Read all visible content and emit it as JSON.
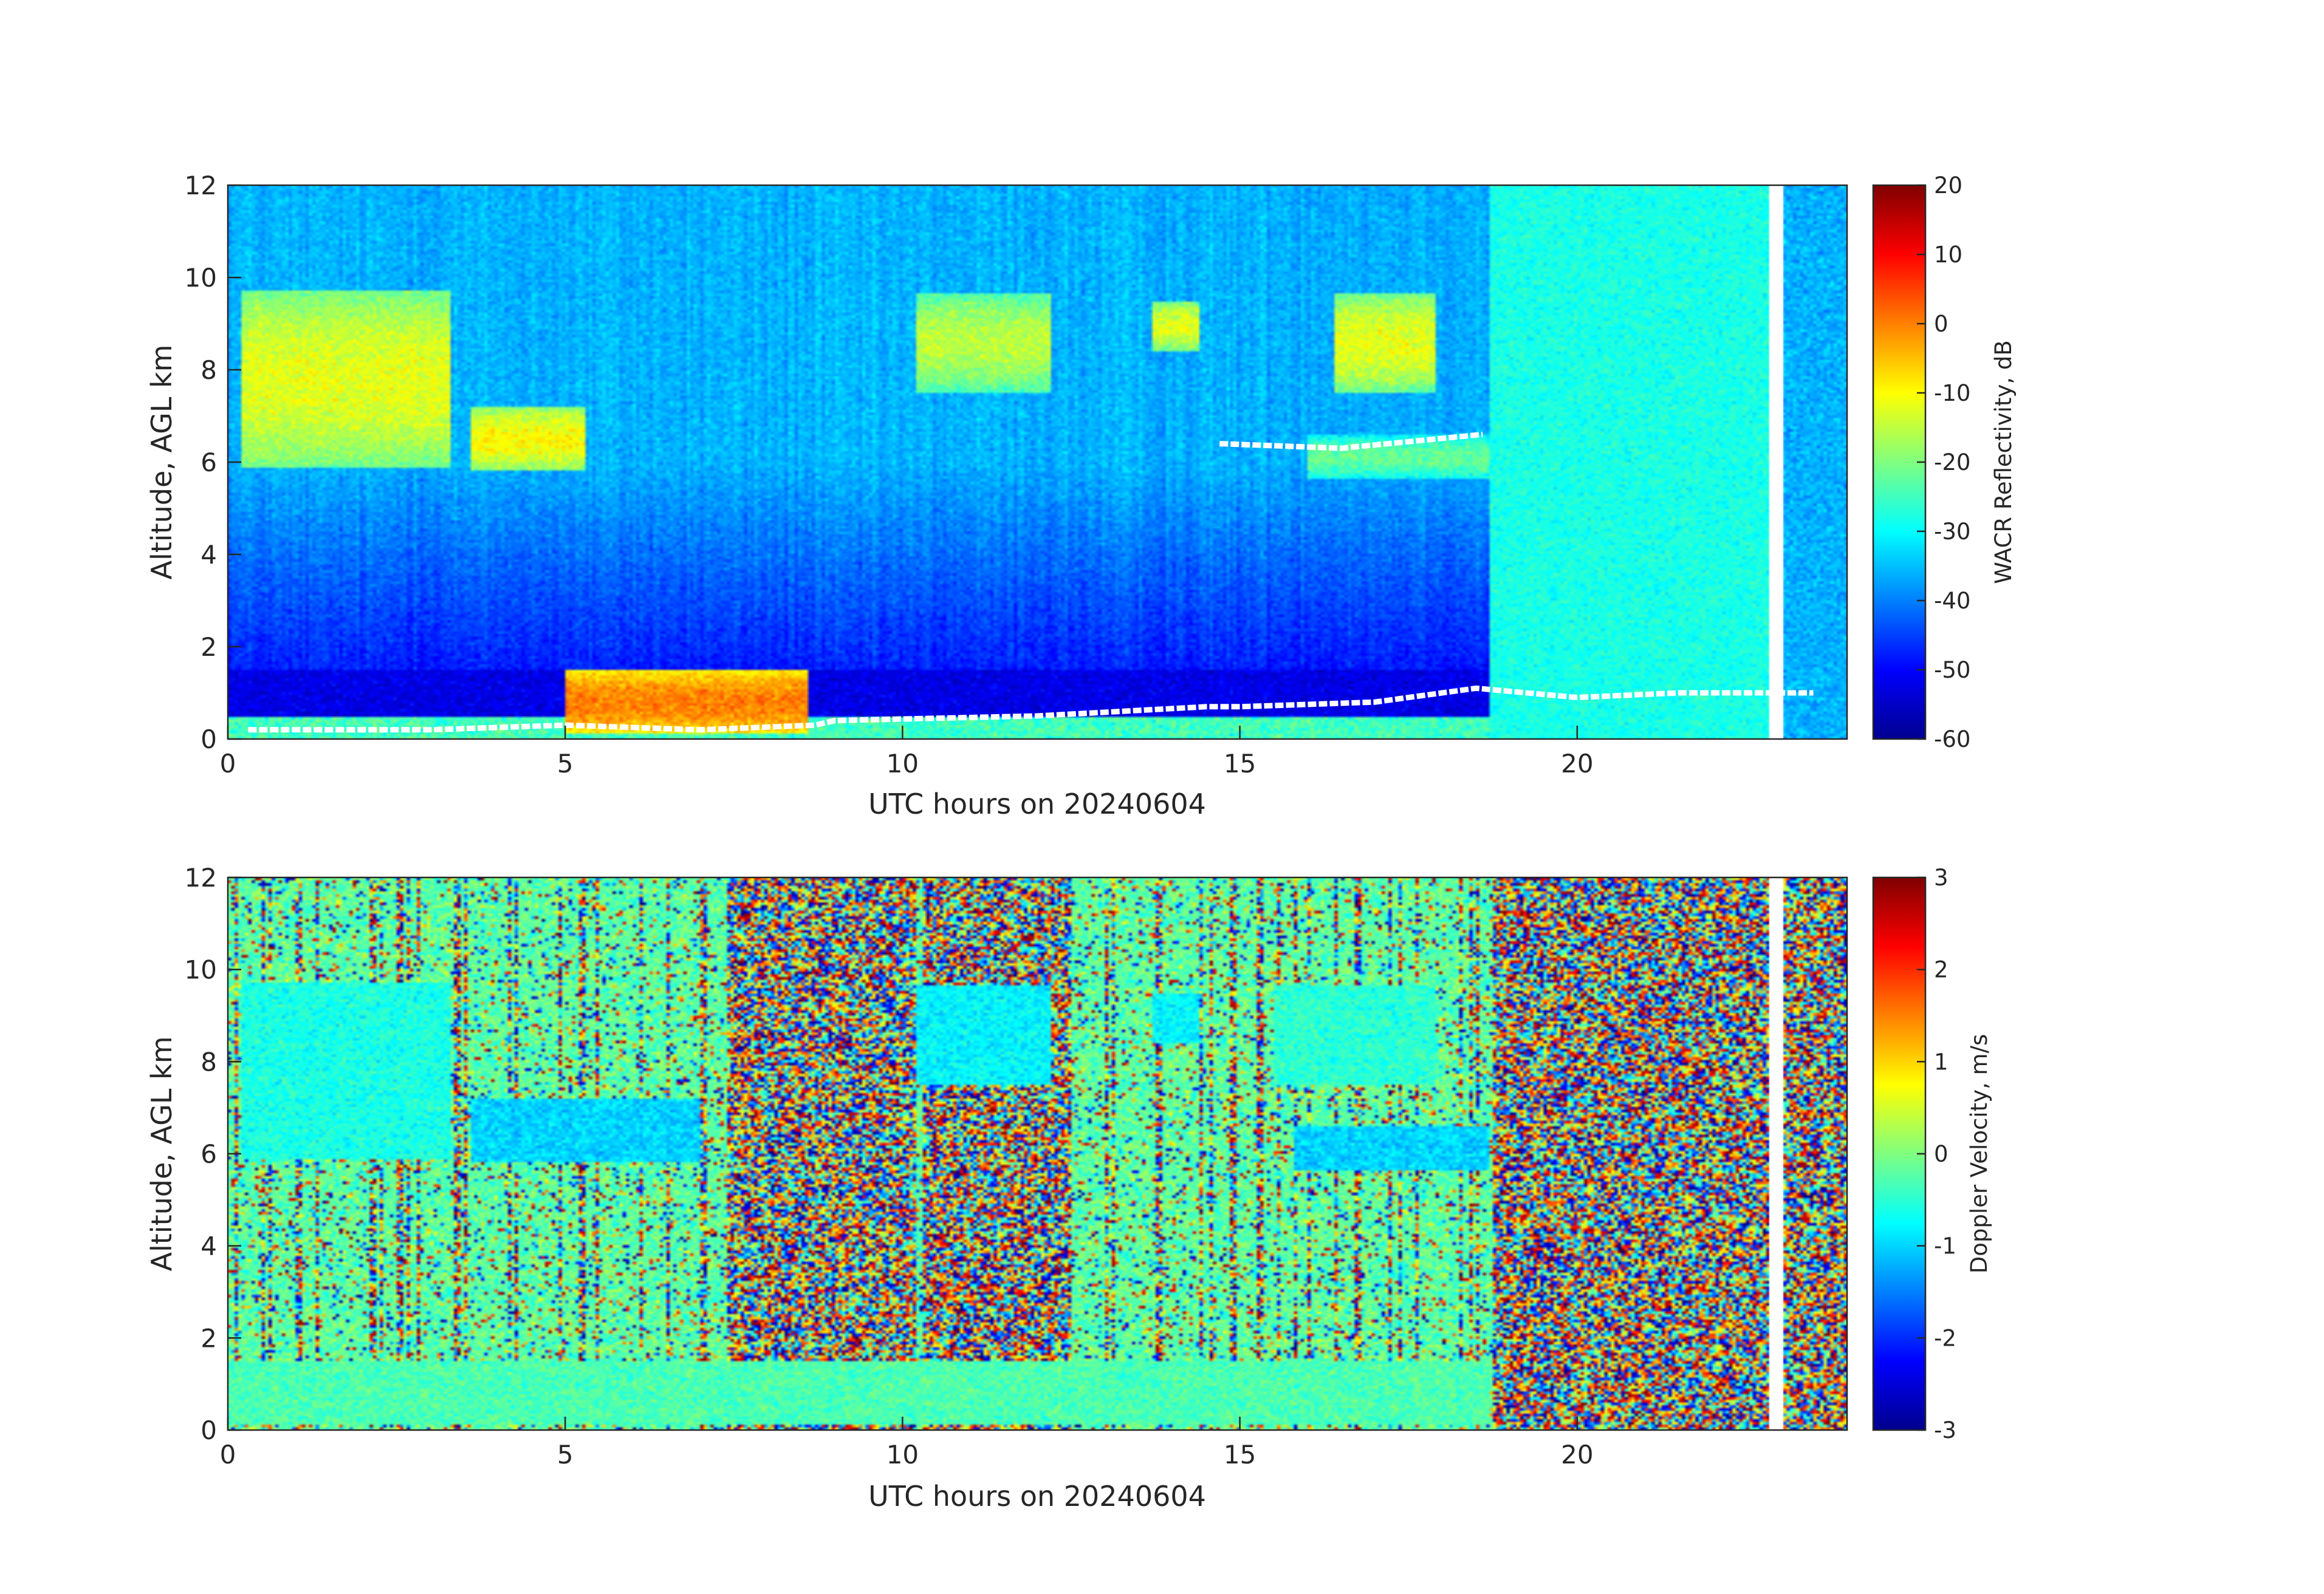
{
  "chart_data": [
    {
      "type": "heatmap",
      "xlabel": "UTC hours on 20240604",
      "ylabel": "Altitude, AGL km",
      "xlim": [
        0,
        24
      ],
      "ylim": [
        0,
        12
      ],
      "x_ticks": [
        0,
        5,
        10,
        15,
        20
      ],
      "y_ticks": [
        0,
        2,
        4,
        6,
        8,
        10,
        12
      ],
      "colorbar": {
        "label": "WACR Reflectivity, dB",
        "range": [
          -60,
          20
        ],
        "ticks": [
          -60,
          -50,
          -40,
          -30,
          -20,
          -10,
          0,
          10,
          20
        ],
        "colormap": "jet"
      },
      "data_gap_hours": [
        22.85,
        23.05
      ],
      "features": [
        {
          "kind": "cirrus",
          "x_start": 0.2,
          "x_end": 3.3,
          "y_bottom": 5.8,
          "y_top": 9.8,
          "dbz": -12
        },
        {
          "kind": "cirrus",
          "x_start": 3.6,
          "x_end": 5.3,
          "y_bottom": 5.8,
          "y_top": 7.2,
          "dbz": -10
        },
        {
          "kind": "cirrus",
          "x_start": 10.2,
          "x_end": 12.2,
          "y_bottom": 7.5,
          "y_top": 9.7,
          "dbz": -15
        },
        {
          "kind": "cirrus",
          "x_start": 13.7,
          "x_end": 14.4,
          "y_bottom": 8.4,
          "y_top": 9.5,
          "dbz": -12
        },
        {
          "kind": "cirrus",
          "x_start": 16.4,
          "x_end": 17.9,
          "y_bottom": 7.5,
          "y_top": 9.7,
          "dbz": -12
        },
        {
          "kind": "mid-layer",
          "x_start": 16.0,
          "x_end": 18.7,
          "y_bottom": 5.6,
          "y_top": 6.6,
          "dbz": -22
        },
        {
          "kind": "boundary-layer",
          "x_start": 5.0,
          "x_end": 8.6,
          "y_bottom": 0.1,
          "y_top": 1.5,
          "dbz": 0
        }
      ],
      "cloud_base_line_km": [
        [
          0.3,
          0.2
        ],
        [
          1.0,
          0.2
        ],
        [
          3.0,
          0.2
        ],
        [
          5.0,
          0.3
        ],
        [
          7.0,
          0.2
        ],
        [
          8.7,
          0.3
        ],
        [
          9.0,
          0.4
        ],
        [
          12.0,
          0.5
        ],
        [
          14.5,
          0.7
        ],
        [
          15.0,
          0.7
        ],
        [
          17.0,
          0.8
        ],
        [
          18.5,
          1.1
        ],
        [
          20.0,
          0.9
        ],
        [
          21.5,
          1.0
        ],
        [
          23.5,
          1.0
        ]
      ],
      "upper_base_line_km": [
        [
          14.7,
          6.4
        ],
        [
          16.5,
          6.3
        ],
        [
          18.6,
          6.6
        ]
      ]
    },
    {
      "type": "heatmap",
      "xlabel": "UTC hours on 20240604",
      "ylabel": "Altitude, AGL km",
      "xlim": [
        0,
        24
      ],
      "ylim": [
        0,
        12
      ],
      "x_ticks": [
        0,
        5,
        10,
        15,
        20
      ],
      "y_ticks": [
        0,
        2,
        4,
        6,
        8,
        10,
        12
      ],
      "colorbar": {
        "label": "Doppler Velocity, m/s",
        "range": [
          -3,
          3
        ],
        "ticks": [
          -3,
          -2,
          -1,
          0,
          1,
          2,
          3
        ],
        "colormap": "jet"
      },
      "data_gap_hours": [
        22.85,
        23.05
      ],
      "noise_regions_hours": [
        [
          7.4,
          10.2
        ],
        [
          10.3,
          12.5
        ],
        [
          18.75,
          22.85
        ],
        [
          23.05,
          24.0
        ]
      ],
      "features": [
        {
          "kind": "cirrus",
          "x_start": 0.2,
          "x_end": 3.3,
          "y_bottom": 5.8,
          "y_top": 9.8,
          "velocity": -0.6
        },
        {
          "kind": "cirrus",
          "x_start": 3.6,
          "x_end": 7.0,
          "y_bottom": 5.8,
          "y_top": 7.2,
          "velocity": -1.0
        },
        {
          "kind": "cirrus",
          "x_start": 10.2,
          "x_end": 12.2,
          "y_bottom": 7.5,
          "y_top": 9.7,
          "velocity": -0.8
        },
        {
          "kind": "cirrus",
          "x_start": 13.7,
          "x_end": 14.4,
          "y_bottom": 8.4,
          "y_top": 9.5,
          "velocity": -0.8
        },
        {
          "kind": "cirrus",
          "x_start": 15.5,
          "x_end": 17.9,
          "y_bottom": 7.5,
          "y_top": 9.7,
          "velocity": -0.5
        },
        {
          "kind": "mid-layer",
          "x_start": 15.8,
          "x_end": 18.7,
          "y_bottom": 5.6,
          "y_top": 6.6,
          "velocity": -1.0
        },
        {
          "kind": "boundary-layer",
          "x_start": 0.0,
          "x_end": 18.7,
          "y_bottom": 0.1,
          "y_top": 1.5,
          "velocity": -0.3
        }
      ]
    }
  ]
}
